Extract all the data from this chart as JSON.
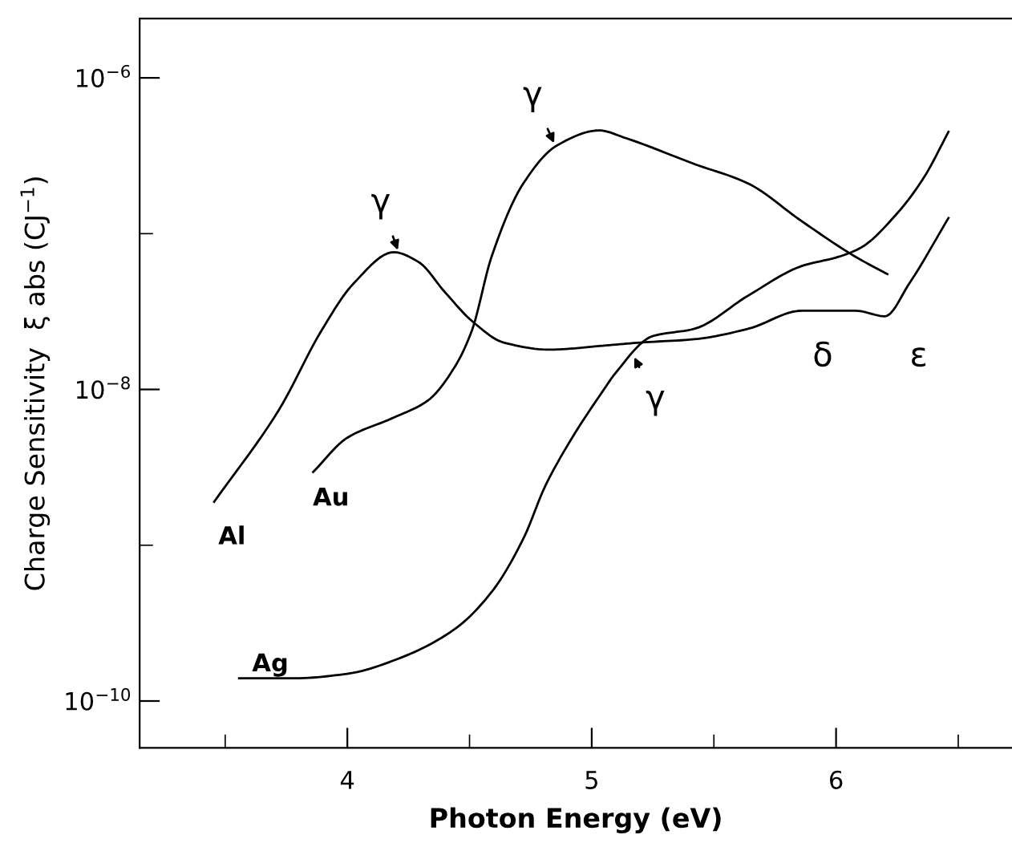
{
  "chart_data": {
    "type": "line",
    "xlabel": "Photon Energy (eV)",
    "ylabel": "Charge Sensitivity  ξ abs (CJ$^{−1}$)",
    "log": "y",
    "xlim": [
      3.15,
      6.72
    ],
    "ylim": [
      5e-11,
      2.4e-06
    ],
    "xticks": [
      {
        "value": 3.5,
        "label": null
      },
      4,
      {
        "value": 4.5,
        "label": null
      },
      5,
      {
        "value": 5.5,
        "label": null
      },
      6,
      {
        "value": 6.5,
        "label": null
      }
    ],
    "yticks": [
      {
        "value": 1e-10,
        "label": "10$^{−10}$"
      },
      {
        "value": 1e-09,
        "label": null
      },
      {
        "value": 1e-08,
        "label": "10$^{−8}$"
      },
      {
        "value": 1e-07,
        "label": null
      },
      {
        "value": 1e-06,
        "label": "10$^{−6}$"
      }
    ],
    "grid": false,
    "legend": false,
    "marker": "none",
    "line_style": "solid",
    "series": [
      {
        "name": "Al",
        "color": "#000000",
        "x": [
          3.455,
          3.72,
          3.895,
          4.026,
          4.19,
          4.29,
          4.4,
          4.51,
          4.64,
          4.83,
          5.03,
          5.2,
          5.42,
          5.64,
          5.86,
          6.08,
          6.2,
          6.3,
          6.46
        ],
        "values": [
          1.9e-09,
          7.4e-09,
          2.4e-08,
          4.8e-08,
          7.6e-08,
          6.6e-08,
          4.2e-08,
          2.75e-08,
          2e-08,
          1.8e-08,
          1.9e-08,
          2e-08,
          2.1e-08,
          2.45e-08,
          3.2e-08,
          3.2e-08,
          2.95e-08,
          4.8e-08,
          1.26e-07
        ]
      },
      {
        "name": "Au",
        "color": "#000000",
        "x": [
          3.86,
          4.0,
          4.18,
          4.33,
          4.44,
          4.51,
          4.59,
          4.72,
          4.86,
          5.03,
          5.14,
          5.42,
          5.64,
          5.86,
          6.08,
          6.21
        ],
        "values": [
          2.95e-09,
          4.9e-09,
          6.5e-09,
          8.5e-09,
          1.4e-08,
          2.4e-08,
          7.1e-08,
          2.1e-07,
          3.7e-07,
          4.6e-07,
          4.1e-07,
          2.8e-07,
          2.1e-07,
          1.2e-07,
          7.1e-08,
          5.5e-08
        ]
      },
      {
        "name": "Ag",
        "color": "#000000",
        "x": [
          3.557,
          3.786,
          4.004,
          4.22,
          4.44,
          4.59,
          4.72,
          4.81,
          4.92,
          5.05,
          5.095,
          5.25,
          5.42,
          5.64,
          5.86,
          6.01,
          6.1,
          6.25,
          6.36,
          6.46
        ],
        "values": [
          1.4e-10,
          1.4e-10,
          1.5e-10,
          1.9e-10,
          2.9e-10,
          5e-10,
          1.1e-09,
          2.4e-09,
          4.9e-09,
          1e-08,
          1.26e-08,
          2.2e-08,
          2.45e-08,
          4e-08,
          6.2e-08,
          7.1e-08,
          8.1e-08,
          1.35e-07,
          2.3e-07,
          4.5e-07
        ]
      }
    ],
    "annotations": [
      {
        "text": "γ",
        "x": 4.21,
        "y": 7.6e-08
      },
      {
        "text": "γ",
        "x": 4.85,
        "y": 3.7e-07
      },
      {
        "text": "γ",
        "x": 5.17,
        "y": 1.66e-08
      },
      "δ",
      "ε"
    ]
  }
}
